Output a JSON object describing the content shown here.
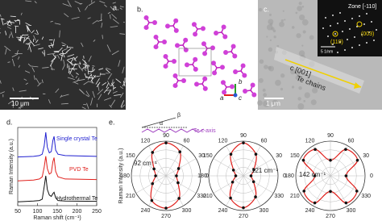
{
  "panels": {
    "a": {
      "label": "a.",
      "scale_bar": "10 μm"
    },
    "b": {
      "label": "b.",
      "axes": [
        "a",
        "b",
        "c"
      ]
    },
    "c": {
      "label": "c.",
      "zone": "Zone [-110]",
      "inset_scale": "5 1/nm",
      "spots": [
        "(110)",
        "(003)"
      ],
      "direction": "c [001]",
      "chains": "Te chains",
      "scale_bar": "1 μm"
    }
  },
  "chart_data": [
    {
      "type": "line",
      "label": "d.",
      "y_label": "Raman Intensity (a.u.)",
      "x_label": "Raman shift (cm⁻¹)",
      "x": [
        50,
        90,
        105,
        112,
        117,
        121,
        125,
        130,
        135,
        139,
        142,
        146,
        152,
        170,
        250
      ],
      "xlim": [
        50,
        250
      ],
      "xticks": [
        50,
        100,
        150,
        200,
        250
      ],
      "series": [
        {
          "name": "Single crystal Te",
          "color": "#1f1fd0",
          "values": [
            0.1,
            0.12,
            0.15,
            0.2,
            0.5,
            1.0,
            0.45,
            0.25,
            0.3,
            0.7,
            0.85,
            0.35,
            0.2,
            0.15,
            0.12
          ]
        },
        {
          "name": "PVD Te",
          "color": "#e0201c",
          "values": [
            0.05,
            0.08,
            0.12,
            0.2,
            0.55,
            0.95,
            0.5,
            0.3,
            0.35,
            0.75,
            0.9,
            0.4,
            0.2,
            0.12,
            0.1
          ]
        },
        {
          "name": "Hydrothermal Te",
          "color": "#111111",
          "values": [
            0.05,
            0.08,
            0.1,
            0.15,
            0.6,
            1.0,
            0.5,
            0.3,
            0.25,
            0.35,
            0.4,
            0.2,
            0.1,
            0.08,
            0.07
          ]
        }
      ]
    },
    {
      "type": "polar",
      "label": "e.",
      "y_label": "Raman Intensity (a.u.)",
      "schematic": {
        "alpha": "α",
        "beta": "β",
        "axis": "Te c-axis"
      },
      "angles": [
        0,
        30,
        60,
        90,
        120,
        150,
        180,
        210,
        240,
        270,
        300,
        330
      ],
      "rlim": [
        0,
        1
      ],
      "plots": [
        {
          "name": "92 cm⁻¹",
          "color": "#e0201c",
          "values": [
            0.3,
            0.42,
            0.8,
            0.95,
            0.78,
            0.4,
            0.3,
            0.45,
            0.82,
            0.93,
            0.75,
            0.4
          ]
        },
        {
          "name": "121 cm⁻¹",
          "color": "#e0201c",
          "values": [
            0.22,
            0.35,
            0.72,
            0.95,
            0.72,
            0.33,
            0.22,
            0.36,
            0.74,
            0.92,
            0.7,
            0.34
          ]
        },
        {
          "name": "142 cm⁻¹",
          "color": "#e0201c",
          "values": [
            0.45,
            0.9,
            0.88,
            0.45,
            0.88,
            0.9,
            0.45,
            0.88,
            0.9,
            0.45,
            0.9,
            0.88
          ]
        }
      ]
    }
  ]
}
